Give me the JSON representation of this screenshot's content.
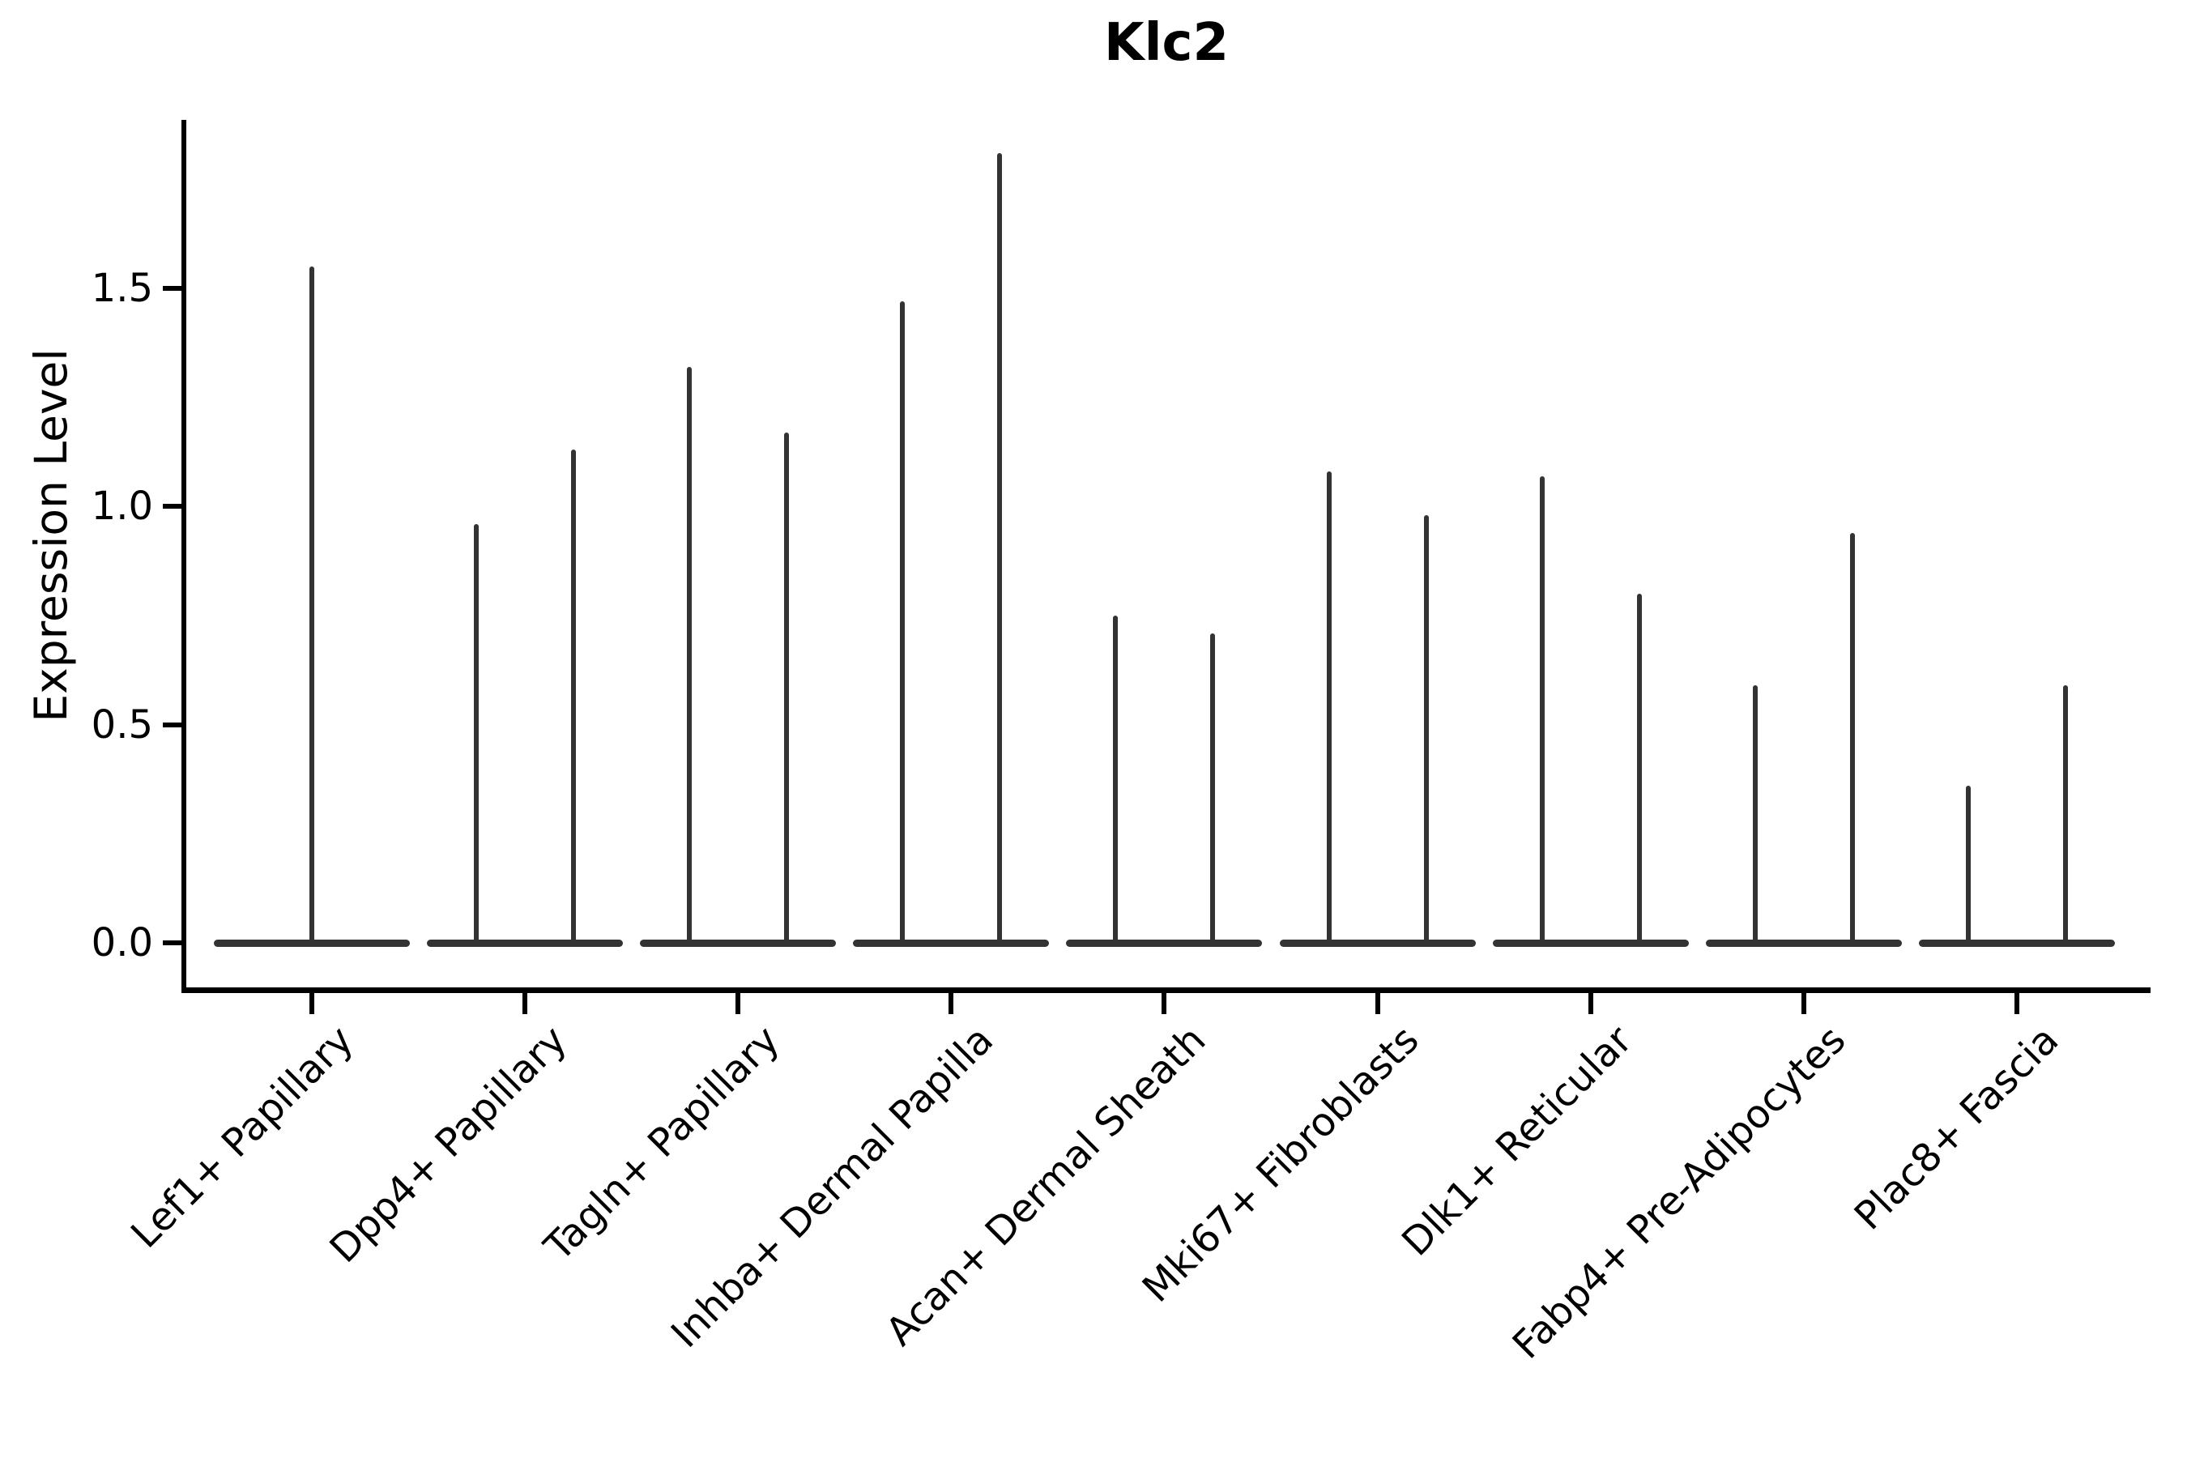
{
  "chart_data": {
    "type": "violin",
    "title": "Klc2",
    "xlabel": "",
    "ylabel": "Expression Level",
    "ytick_labels": [
      "1.5",
      "1.0",
      "0.5",
      "0.0"
    ],
    "ytick_values": [
      1.5,
      1.0,
      0.5,
      0.0
    ],
    "ylim": [
      -0.09,
      1.9
    ],
    "grid": false,
    "legend_position": "none",
    "ink_color": "#333333",
    "axis_color": "#000000",
    "background_color": "#ffffff",
    "description": "Needle-shaped violins: almost all density is a flat bar at expression 0, with one or two thin spikes per cluster rising to the maximum expression value.",
    "categories": [
      "Lef1+ Papillary",
      "Dpp4+ Papillary",
      "Tagln+ Papillary",
      "Inhba+ Dermal Papilla",
      "Acan+ Dermal Sheath",
      "Mki67+ Fibroblasts",
      "Dlk1+ Reticular",
      "Fabp4+ Pre-Adipocytes",
      "Plac8+ Fascia"
    ],
    "series": [
      {
        "category": "Lef1+ Papillary",
        "spikes": [
          1.55
        ],
        "baseline_value": 0.0
      },
      {
        "category": "Dpp4+ Papillary",
        "spikes": [
          0.96,
          1.13
        ],
        "baseline_value": 0.0
      },
      {
        "category": "Tagln+ Papillary",
        "spikes": [
          1.32,
          1.17
        ],
        "baseline_value": 0.0
      },
      {
        "category": "Inhba+ Dermal Papilla",
        "spikes": [
          1.47,
          1.81
        ],
        "baseline_value": 0.0
      },
      {
        "category": "Acan+ Dermal Sheath",
        "spikes": [
          0.75,
          0.71
        ],
        "baseline_value": 0.0
      },
      {
        "category": "Mki67+ Fibroblasts",
        "spikes": [
          1.08,
          0.98
        ],
        "baseline_value": 0.0
      },
      {
        "category": "Dlk1+ Reticular",
        "spikes": [
          1.07,
          0.8
        ],
        "baseline_value": 0.0
      },
      {
        "category": "Fabp4+ Pre-Adipocytes",
        "spikes": [
          0.59,
          0.94
        ],
        "baseline_value": 0.0
      },
      {
        "category": "Plac8+ Fascia",
        "spikes": [
          0.36,
          0.59
        ],
        "baseline_value": 0.0
      }
    ]
  }
}
